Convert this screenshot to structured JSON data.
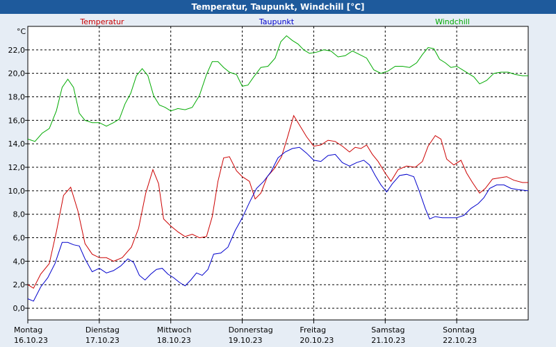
{
  "chart_data": {
    "type": "line",
    "title": "Temperatur, Taupunkt, Windchill [°C]",
    "ylabel": "°C",
    "ylim": [
      -1.0,
      24.0
    ],
    "yticks": [
      "0,0",
      "2,0",
      "4,0",
      "6,0",
      "8,0",
      "10,0",
      "12,0",
      "14,0",
      "16,0",
      "18,0",
      "20,0",
      "22,0"
    ],
    "ytick_values": [
      0,
      2,
      4,
      6,
      8,
      10,
      12,
      14,
      16,
      18,
      20,
      22
    ],
    "xlim": [
      0,
      7.0
    ],
    "day_ticks": [
      1,
      2,
      3,
      4,
      5,
      6
    ],
    "days": [
      {
        "name": "Montag",
        "date": "16.10.23"
      },
      {
        "name": "Dienstag",
        "date": "17.10.23"
      },
      {
        "name": "Mittwoch",
        "date": "18.10.23"
      },
      {
        "name": "Donnerstag",
        "date": "19.10.23"
      },
      {
        "name": "Freitag",
        "date": "20.10.23"
      },
      {
        "name": "Samstag",
        "date": "21.10.23"
      },
      {
        "name": "Sonntag",
        "date": "22.10.23"
      }
    ],
    "grid": true,
    "legend_position": "top",
    "series": [
      {
        "name": "Temperatur",
        "color": "#cc0000",
        "points": [
          [
            0.0,
            2.0
          ],
          [
            0.08,
            1.7
          ],
          [
            0.18,
            2.9
          ],
          [
            0.3,
            3.8
          ],
          [
            0.4,
            6.5
          ],
          [
            0.5,
            9.6
          ],
          [
            0.6,
            10.3
          ],
          [
            0.7,
            8.3
          ],
          [
            0.8,
            5.5
          ],
          [
            0.9,
            4.6
          ],
          [
            1.0,
            4.3
          ],
          [
            1.1,
            4.3
          ],
          [
            1.2,
            4.0
          ],
          [
            1.32,
            4.3
          ],
          [
            1.45,
            5.2
          ],
          [
            1.55,
            6.8
          ],
          [
            1.65,
            9.8
          ],
          [
            1.75,
            11.8
          ],
          [
            1.83,
            10.6
          ],
          [
            1.9,
            7.6
          ],
          [
            2.0,
            7.0
          ],
          [
            2.1,
            6.5
          ],
          [
            2.2,
            6.1
          ],
          [
            2.3,
            6.3
          ],
          [
            2.4,
            6.0
          ],
          [
            2.5,
            6.1
          ],
          [
            2.58,
            7.8
          ],
          [
            2.66,
            10.8
          ],
          [
            2.74,
            12.8
          ],
          [
            2.82,
            12.9
          ],
          [
            2.92,
            11.7
          ],
          [
            3.0,
            11.2
          ],
          [
            3.1,
            10.8
          ],
          [
            3.18,
            9.3
          ],
          [
            3.26,
            9.8
          ],
          [
            3.35,
            11.2
          ],
          [
            3.45,
            11.9
          ],
          [
            3.55,
            12.9
          ],
          [
            3.63,
            14.5
          ],
          [
            3.72,
            16.4
          ],
          [
            3.8,
            15.6
          ],
          [
            3.9,
            14.6
          ],
          [
            4.0,
            13.8
          ],
          [
            4.1,
            13.9
          ],
          [
            4.2,
            14.3
          ],
          [
            4.3,
            14.2
          ],
          [
            4.4,
            13.8
          ],
          [
            4.5,
            13.3
          ],
          [
            4.58,
            13.7
          ],
          [
            4.66,
            13.6
          ],
          [
            4.74,
            13.9
          ],
          [
            4.82,
            13.1
          ],
          [
            4.9,
            12.5
          ],
          [
            5.0,
            11.5
          ],
          [
            5.08,
            10.8
          ],
          [
            5.18,
            11.8
          ],
          [
            5.3,
            12.1
          ],
          [
            5.42,
            12.0
          ],
          [
            5.52,
            12.5
          ],
          [
            5.6,
            13.8
          ],
          [
            5.7,
            14.7
          ],
          [
            5.78,
            14.4
          ],
          [
            5.86,
            12.7
          ],
          [
            5.96,
            12.2
          ],
          [
            6.06,
            12.6
          ],
          [
            6.14,
            11.5
          ],
          [
            6.22,
            10.7
          ],
          [
            6.32,
            9.8
          ],
          [
            6.4,
            10.2
          ],
          [
            6.5,
            11.0
          ],
          [
            6.6,
            11.1
          ],
          [
            6.7,
            11.2
          ],
          [
            6.8,
            10.9
          ],
          [
            6.92,
            10.7
          ],
          [
            7.0,
            10.7
          ]
        ]
      },
      {
        "name": "Taupunkt",
        "color": "#0000cc",
        "points": [
          [
            0.0,
            0.8
          ],
          [
            0.08,
            0.6
          ],
          [
            0.18,
            1.8
          ],
          [
            0.28,
            2.6
          ],
          [
            0.38,
            3.8
          ],
          [
            0.48,
            5.6
          ],
          [
            0.56,
            5.6
          ],
          [
            0.64,
            5.4
          ],
          [
            0.72,
            5.3
          ],
          [
            0.8,
            4.2
          ],
          [
            0.9,
            3.1
          ],
          [
            1.0,
            3.4
          ],
          [
            1.1,
            3.0
          ],
          [
            1.2,
            3.2
          ],
          [
            1.3,
            3.6
          ],
          [
            1.4,
            4.2
          ],
          [
            1.48,
            3.9
          ],
          [
            1.56,
            2.8
          ],
          [
            1.64,
            2.4
          ],
          [
            1.72,
            2.9
          ],
          [
            1.8,
            3.3
          ],
          [
            1.88,
            3.4
          ],
          [
            1.96,
            2.9
          ],
          [
            2.04,
            2.6
          ],
          [
            2.12,
            2.2
          ],
          [
            2.2,
            1.9
          ],
          [
            2.28,
            2.4
          ],
          [
            2.36,
            3.0
          ],
          [
            2.44,
            2.8
          ],
          [
            2.52,
            3.3
          ],
          [
            2.6,
            4.6
          ],
          [
            2.7,
            4.7
          ],
          [
            2.8,
            5.2
          ],
          [
            2.9,
            6.6
          ],
          [
            3.0,
            7.7
          ],
          [
            3.1,
            9.0
          ],
          [
            3.2,
            10.2
          ],
          [
            3.3,
            10.8
          ],
          [
            3.4,
            11.6
          ],
          [
            3.5,
            12.8
          ],
          [
            3.6,
            13.3
          ],
          [
            3.7,
            13.6
          ],
          [
            3.8,
            13.7
          ],
          [
            3.9,
            13.2
          ],
          [
            4.0,
            12.6
          ],
          [
            4.1,
            12.5
          ],
          [
            4.2,
            13.0
          ],
          [
            4.3,
            13.1
          ],
          [
            4.4,
            12.4
          ],
          [
            4.5,
            12.1
          ],
          [
            4.6,
            12.4
          ],
          [
            4.7,
            12.6
          ],
          [
            4.78,
            12.2
          ],
          [
            4.86,
            11.3
          ],
          [
            4.94,
            10.5
          ],
          [
            5.02,
            9.9
          ],
          [
            5.1,
            10.6
          ],
          [
            5.2,
            11.3
          ],
          [
            5.3,
            11.4
          ],
          [
            5.4,
            11.2
          ],
          [
            5.48,
            9.9
          ],
          [
            5.56,
            8.5
          ],
          [
            5.62,
            7.6
          ],
          [
            5.7,
            7.8
          ],
          [
            5.8,
            7.7
          ],
          [
            5.9,
            7.7
          ],
          [
            6.0,
            7.7
          ],
          [
            6.1,
            7.9
          ],
          [
            6.2,
            8.5
          ],
          [
            6.3,
            8.9
          ],
          [
            6.38,
            9.4
          ],
          [
            6.46,
            10.2
          ],
          [
            6.56,
            10.5
          ],
          [
            6.66,
            10.5
          ],
          [
            6.76,
            10.2
          ],
          [
            6.86,
            10.1
          ],
          [
            7.0,
            10.0
          ]
        ]
      },
      {
        "name": "Windchill",
        "color": "#00aa00",
        "points": [
          [
            0.0,
            14.4
          ],
          [
            0.1,
            14.2
          ],
          [
            0.2,
            14.9
          ],
          [
            0.3,
            15.3
          ],
          [
            0.4,
            16.8
          ],
          [
            0.48,
            18.8
          ],
          [
            0.56,
            19.5
          ],
          [
            0.64,
            18.8
          ],
          [
            0.72,
            16.6
          ],
          [
            0.8,
            16.0
          ],
          [
            0.9,
            15.8
          ],
          [
            1.0,
            15.8
          ],
          [
            1.1,
            15.5
          ],
          [
            1.2,
            15.8
          ],
          [
            1.28,
            16.1
          ],
          [
            1.36,
            17.4
          ],
          [
            1.44,
            18.3
          ],
          [
            1.52,
            19.8
          ],
          [
            1.6,
            20.4
          ],
          [
            1.68,
            19.8
          ],
          [
            1.76,
            18.1
          ],
          [
            1.84,
            17.3
          ],
          [
            1.92,
            17.1
          ],
          [
            2.0,
            16.8
          ],
          [
            2.1,
            17.0
          ],
          [
            2.2,
            16.9
          ],
          [
            2.3,
            17.1
          ],
          [
            2.4,
            18.1
          ],
          [
            2.5,
            19.9
          ],
          [
            2.58,
            21.0
          ],
          [
            2.66,
            21.0
          ],
          [
            2.74,
            20.5
          ],
          [
            2.82,
            20.1
          ],
          [
            2.92,
            19.9
          ],
          [
            3.0,
            18.9
          ],
          [
            3.08,
            19.0
          ],
          [
            3.16,
            19.7
          ],
          [
            3.26,
            20.5
          ],
          [
            3.36,
            20.6
          ],
          [
            3.46,
            21.3
          ],
          [
            3.54,
            22.7
          ],
          [
            3.62,
            23.2
          ],
          [
            3.7,
            22.8
          ],
          [
            3.78,
            22.5
          ],
          [
            3.86,
            22.0
          ],
          [
            3.94,
            21.7
          ],
          [
            4.04,
            21.8
          ],
          [
            4.14,
            22.0
          ],
          [
            4.24,
            21.9
          ],
          [
            4.34,
            21.4
          ],
          [
            4.44,
            21.5
          ],
          [
            4.54,
            21.9
          ],
          [
            4.64,
            21.6
          ],
          [
            4.74,
            21.3
          ],
          [
            4.84,
            20.3
          ],
          [
            4.94,
            20.0
          ],
          [
            5.04,
            20.2
          ],
          [
            5.14,
            20.6
          ],
          [
            5.24,
            20.6
          ],
          [
            5.34,
            20.5
          ],
          [
            5.44,
            20.9
          ],
          [
            5.52,
            21.6
          ],
          [
            5.6,
            22.2
          ],
          [
            5.68,
            22.1
          ],
          [
            5.76,
            21.2
          ],
          [
            5.84,
            20.9
          ],
          [
            5.92,
            20.5
          ],
          [
            6.0,
            20.6
          ],
          [
            6.08,
            20.3
          ],
          [
            6.16,
            20.0
          ],
          [
            6.24,
            19.7
          ],
          [
            6.32,
            19.1
          ],
          [
            6.42,
            19.4
          ],
          [
            6.52,
            20.0
          ],
          [
            6.62,
            20.1
          ],
          [
            6.72,
            20.1
          ],
          [
            6.82,
            19.9
          ],
          [
            6.92,
            19.8
          ],
          [
            7.0,
            19.8
          ]
        ]
      }
    ]
  }
}
